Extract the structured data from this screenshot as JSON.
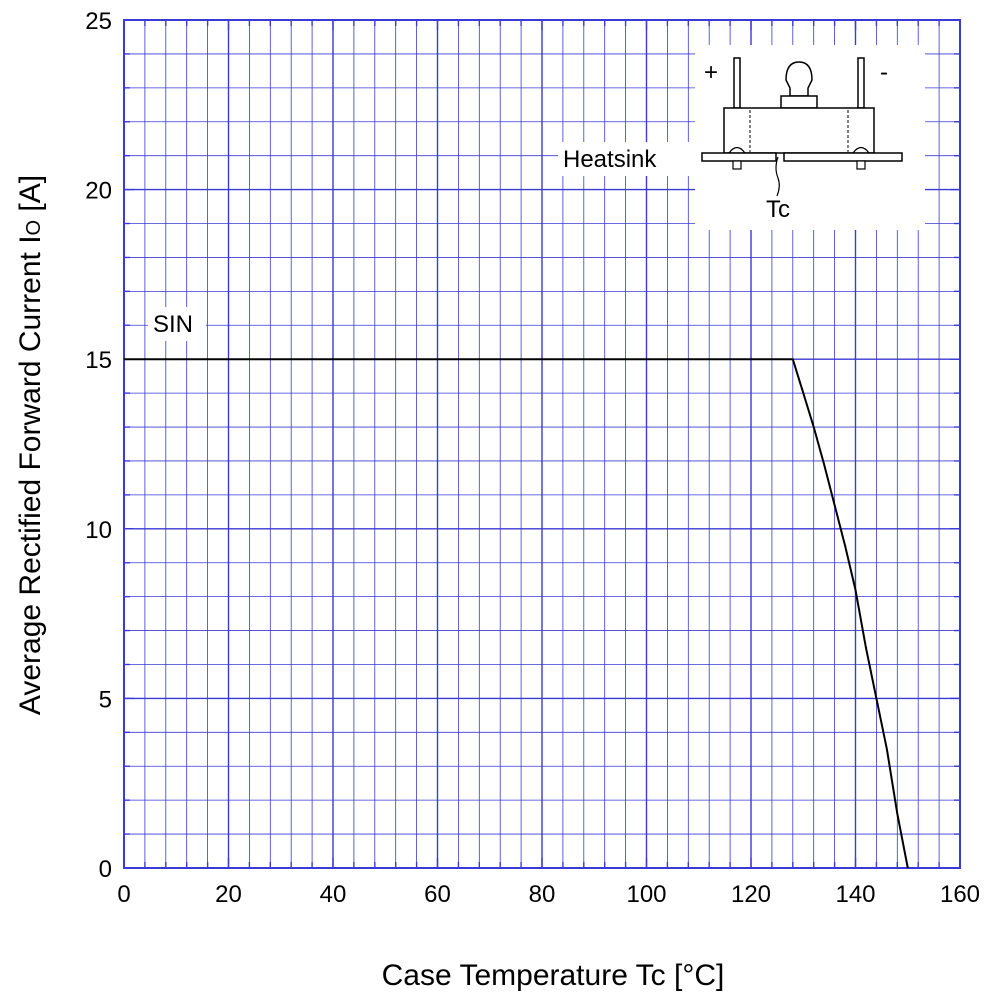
{
  "chart_data": {
    "type": "line",
    "xlabel": "Case Temperature  Tc  [°C]",
    "ylabel_main": "Average Rectified Forward Current  I",
    "ylabel_sub": "O",
    "ylabel_unit": " [A]",
    "xlim": [
      0,
      160
    ],
    "ylim": [
      0,
      25
    ],
    "x_major_ticks": [
      0,
      20,
      40,
      60,
      80,
      100,
      120,
      140,
      160
    ],
    "x_tick_labels": [
      "0",
      "20",
      "40",
      "60",
      "80",
      "100",
      "120",
      "140",
      "160"
    ],
    "y_major_ticks": [
      0,
      5,
      10,
      15,
      20,
      25
    ],
    "y_tick_labels": [
      "0",
      "5",
      "10",
      "15",
      "20",
      "25"
    ],
    "x_minor_step": 4,
    "y_minor_step": 1,
    "grid": true,
    "series": [
      {
        "name": "SIN",
        "x": [
          0,
          128,
          130,
          132,
          134,
          136,
          138,
          140,
          142,
          144,
          146,
          148,
          150
        ],
        "y": [
          15,
          15,
          14.0,
          13.0,
          11.9,
          10.7,
          9.5,
          8.2,
          6.5,
          5.0,
          3.5,
          1.6,
          0
        ]
      }
    ],
    "annotations": {
      "series_label": "SIN",
      "heatsink": "Heatsink",
      "tc": "Tc",
      "plus": "+",
      "minus": "-"
    },
    "colors": {
      "grid": "#3a3ad6",
      "line": "#000000"
    }
  }
}
